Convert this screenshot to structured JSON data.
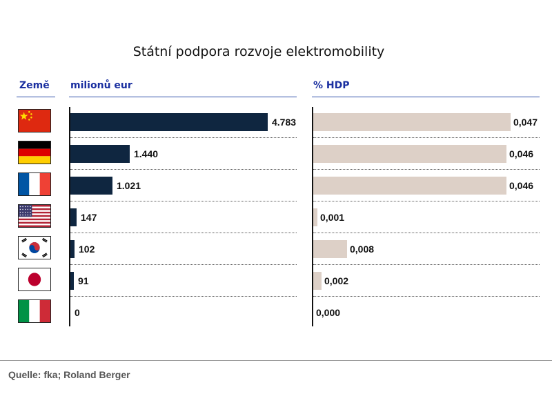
{
  "chart_data": {
    "type": "bar",
    "title": "Státní podpora rozvoje elektromobility",
    "column_header": "Země",
    "categories": [
      "Čína",
      "Německo",
      "Francie",
      "USA",
      "Jižní Korea",
      "Japonsko",
      "Itálie"
    ],
    "flag_icons": [
      "flag-china-icon",
      "flag-germany-icon",
      "flag-france-icon",
      "flag-usa-icon",
      "flag-south-korea-icon",
      "flag-japan-icon",
      "flag-italy-icon"
    ],
    "series": [
      {
        "name": "milionů eur",
        "values": [
          4783,
          1440,
          1021,
          147,
          102,
          91,
          0
        ],
        "labels": [
          "4.783",
          "1.440",
          "1.021",
          "147",
          "102",
          "91",
          "0"
        ],
        "color": "#0f2640",
        "xlim": [
          0,
          4783
        ]
      },
      {
        "name": "% HDP",
        "values": [
          0.047,
          0.046,
          0.046,
          0.001,
          0.008,
          0.002,
          0.0
        ],
        "labels": [
          "0,047",
          "0,046",
          "0,046",
          "0,001",
          "0,008",
          "0,002",
          "0,000"
        ],
        "color": "#ddd0c7",
        "xlim": [
          0,
          0.047
        ]
      }
    ],
    "source": "Quelle: fka; Roland Berger"
  }
}
